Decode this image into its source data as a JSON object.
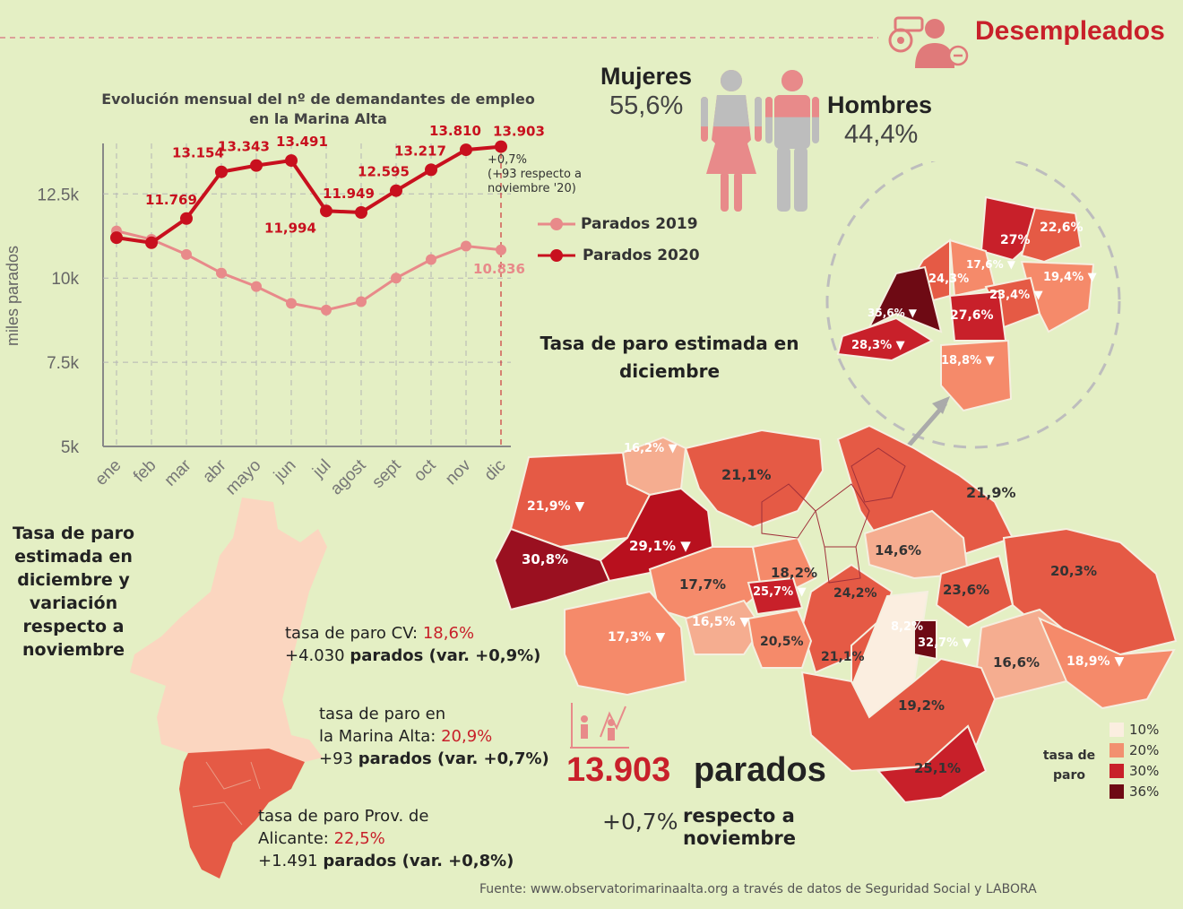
{
  "header": {
    "title": "Desempleados",
    "icon": "unemployed-people-icon",
    "dash_color": "#d9868a"
  },
  "chart_data": {
    "type": "line",
    "title": "Evolución mensual del nº de demandantes de empleo en la Marina Alta",
    "ylabel": "miles parados",
    "xlabel": "",
    "categories": [
      "ene",
      "feb",
      "mar",
      "abr",
      "mayo",
      "jun",
      "jul",
      "agost",
      "sept",
      "oct",
      "nov",
      "dic"
    ],
    "yticks": [
      "5k",
      "7.5k",
      "10k",
      "12.5k"
    ],
    "ylim": [
      5000,
      14000
    ],
    "grid": true,
    "legend": "right",
    "series": [
      {
        "name": "Parados 2019",
        "color": "#e88a8a",
        "values": [
          11400,
          11150,
          10700,
          10150,
          9750,
          9250,
          9050,
          9300,
          10000,
          10550,
          10950,
          10836
        ],
        "labels": [
          "",
          "",
          "",
          "",
          "",
          "",
          "",
          "",
          "",
          "",
          "",
          "10.836"
        ]
      },
      {
        "name": "Parados 2020",
        "color": "#c8101e",
        "values": [
          11200,
          11050,
          11769,
          13154,
          13343,
          13491,
          11994,
          11949,
          12595,
          13217,
          13810,
          13903
        ],
        "labels": [
          "",
          "",
          "11.769",
          "13.154",
          "13.343",
          "13.491",
          "11,994",
          "11.949",
          "12.595",
          "13.217",
          "13.810",
          "13.903"
        ]
      }
    ],
    "annotation": [
      "+0,7%",
      "(+93 respecto a",
      "noviembre '20)"
    ]
  },
  "gender": {
    "women_label": "Mujeres",
    "women_pct": "55,6%",
    "women_fraction": 0.556,
    "men_label": "Hombres",
    "men_pct": "44,4%",
    "men_fraction": 0.444,
    "women_icon": "woman-icon",
    "men_icon": "man-icon"
  },
  "map": {
    "title": "Tasa de paro estimada en diciembre",
    "region_labels": [
      "16,2%",
      "21,1%",
      "21,9%",
      "21,9%",
      "30,8%",
      "29,1%",
      "17,7%",
      "18,2%",
      "25,7%",
      "14,6%",
      "20,3%",
      "23,6%",
      "24,2%",
      "17,3%",
      "16,5%",
      "20,5%",
      "21,1%",
      "8,2%",
      "32,7%",
      "16,6%",
      "18,9%",
      "19,2%",
      "25,1%"
    ],
    "inset_labels": [
      "27%",
      "22,6%",
      "24,3%",
      "17,6%",
      "19,4%",
      "23,4%",
      "35,6%",
      "27,6%",
      "28,3%",
      "18,8%"
    ]
  },
  "region": {
    "title": "Tasa de paro estimada en diciembre y variación respecto a noviembre",
    "cv_label": "tasa de paro CV:",
    "cv_value": "18,6%",
    "cv_change": "+4.030",
    "cv_change_text": "parados (var. +0,9%)",
    "ma_label1": "tasa de paro en",
    "ma_label2": "la Marina Alta:",
    "ma_value": "20,9%",
    "ma_change": "+93",
    "ma_change_text": "parados (var. +0,7%)",
    "prov_label1": "tasa de paro Prov. de",
    "prov_label2": "Alicante:",
    "prov_value": "22,5%",
    "prov_change": "+1.491",
    "prov_change_text": "parados (var. +0,8%)"
  },
  "summary": {
    "total": "13.903",
    "total_word": "parados",
    "change": "+0,7%",
    "change_text": "respecto a noviembre",
    "icon": "people-protest-icon"
  },
  "legend_tasa": {
    "title": "tasa de paro",
    "items": [
      {
        "label": "10%",
        "color": "#fbeee0"
      },
      {
        "label": "20%",
        "color": "#f29070"
      },
      {
        "label": "30%",
        "color": "#c8202a"
      },
      {
        "label": "36%",
        "color": "#6e0a14"
      }
    ]
  },
  "source": "Fuente: www.observatorimarinaalta.org a través de datos de Seguridad Social y LABORA"
}
